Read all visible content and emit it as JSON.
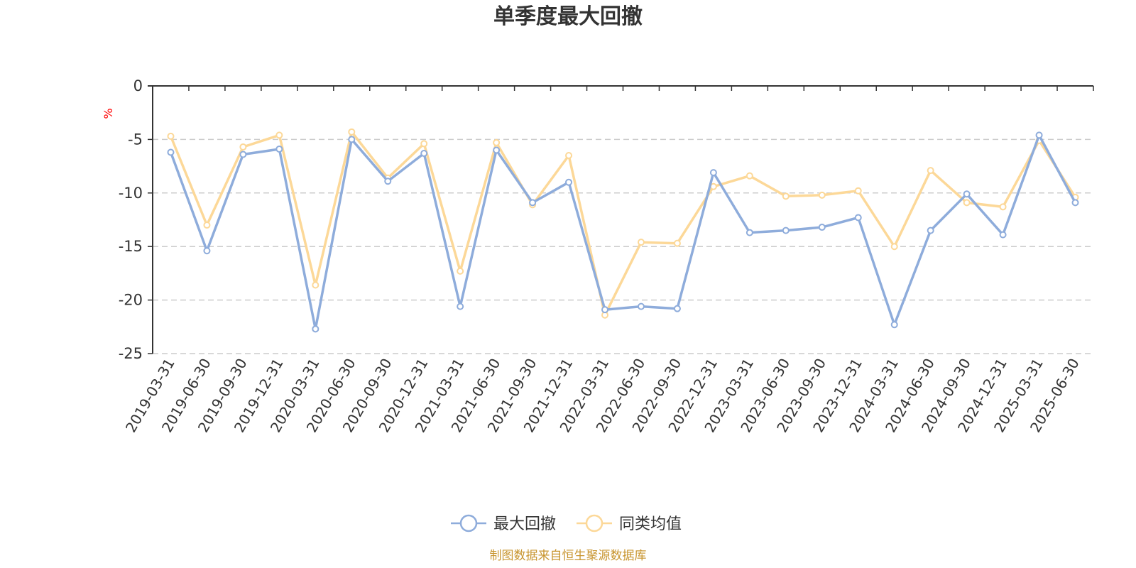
{
  "chart_data": {
    "type": "line",
    "title": "单季度最大回撤",
    "ylabel": "%",
    "ylim": [
      -25,
      0
    ],
    "yticks": [
      0,
      -5,
      -10,
      -15,
      -20,
      -25
    ],
    "grid": true,
    "legend_position": "bottom",
    "categories": [
      "2019-03-31",
      "2019-06-30",
      "2019-09-30",
      "2019-12-31",
      "2020-03-31",
      "2020-06-30",
      "2020-09-30",
      "2020-12-31",
      "2021-03-31",
      "2021-06-30",
      "2021-09-30",
      "2021-12-31",
      "2022-03-31",
      "2022-06-30",
      "2022-09-30",
      "2022-12-31",
      "2023-03-31",
      "2023-06-30",
      "2023-09-30",
      "2023-12-31",
      "2024-03-31",
      "2024-06-30",
      "2024-09-30",
      "2024-12-31",
      "2025-03-31",
      "2025-06-30"
    ],
    "series": [
      {
        "name": "最大回撤",
        "color": "#8eacdb",
        "values": [
          -6.2,
          -15.4,
          -6.4,
          -5.9,
          -22.7,
          -5.0,
          -8.9,
          -6.3,
          -20.6,
          -6.0,
          -10.9,
          -9.0,
          -20.9,
          -20.6,
          -20.8,
          -8.1,
          -13.7,
          -13.5,
          -13.2,
          -12.3,
          -22.3,
          -13.5,
          -10.1,
          -13.9,
          -4.6,
          -10.9
        ]
      },
      {
        "name": "同类均值",
        "color": "#fcd898",
        "values": [
          -4.7,
          -13.0,
          -5.7,
          -4.6,
          -18.6,
          -4.3,
          -8.6,
          -5.4,
          -17.3,
          -5.3,
          -11.1,
          -6.5,
          -21.4,
          -14.6,
          -14.7,
          -9.4,
          -8.4,
          -10.3,
          -10.2,
          -9.8,
          -15.0,
          -7.9,
          -10.9,
          -11.3,
          -5.1,
          -10.4
        ]
      }
    ]
  },
  "footer": {
    "source": "制图数据来自恒生聚源数据库"
  }
}
